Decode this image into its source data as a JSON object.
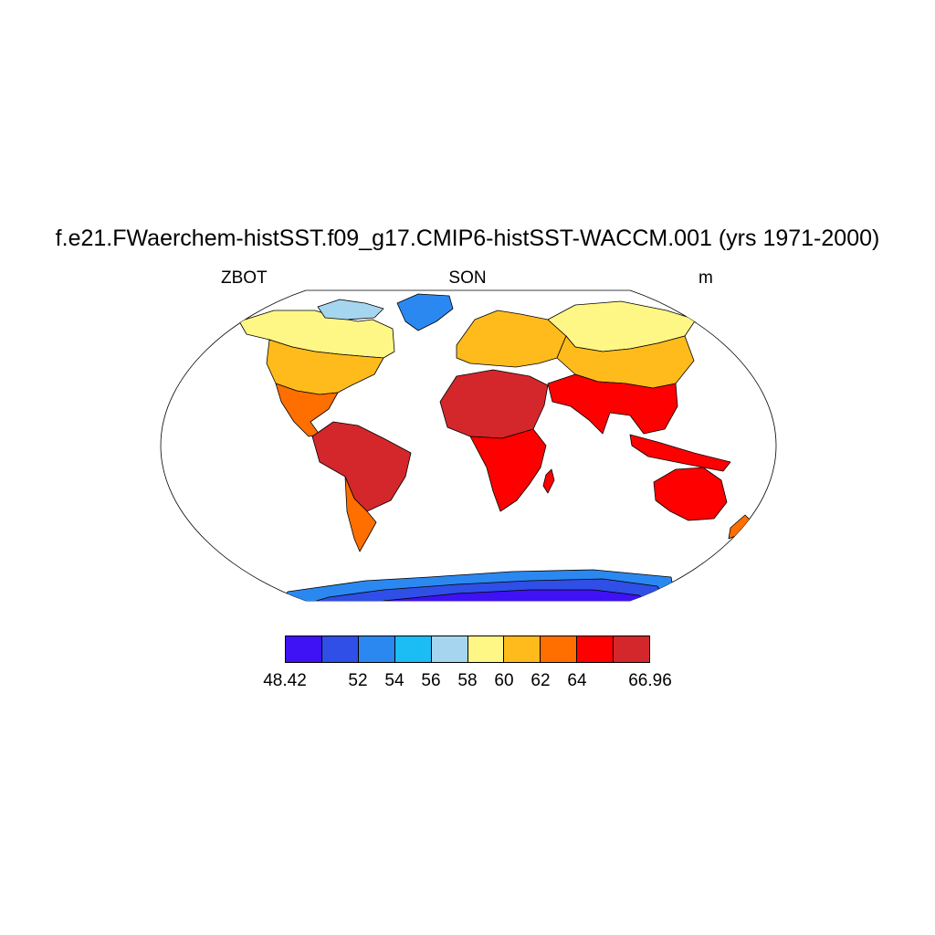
{
  "title": "f.e21.FWaerchem-histSST.f09_g17.CMIP6-histSST-WACCM.001 (yrs 1971-2000)",
  "variable": "ZBOT",
  "season": "SON",
  "units": "m",
  "projection": "Robinson",
  "colorbar": {
    "colors": [
      "#3f11f5",
      "#2f4fe6",
      "#2b88f0",
      "#1cbcf5",
      "#a6d6ef",
      "#fff785",
      "#ffbb1c",
      "#ff6f00",
      "#ff0000",
      "#d3272c"
    ],
    "labels": [
      "48.42",
      "52",
      "54",
      "56",
      "58",
      "60",
      "62",
      "64",
      "66.96"
    ],
    "bounds": [
      48.42,
      50,
      52,
      54,
      56,
      58,
      60,
      62,
      64,
      66,
      66.96
    ]
  },
  "field_colors": {
    "antarctica": [
      "#3f11f5",
      "#2f4fe6",
      "#2b88f0",
      "#1cbcf5"
    ],
    "greenland": [
      "#2b88f0",
      "#1cbcf5",
      "#a6d6ef"
    ],
    "high_latitude_land": [
      "#fff785",
      "#a6d6ef"
    ],
    "mid_latitude_land": [
      "#ffbb1c",
      "#ff6f00"
    ],
    "tropical_land": [
      "#ff0000",
      "#d3272c"
    ]
  }
}
